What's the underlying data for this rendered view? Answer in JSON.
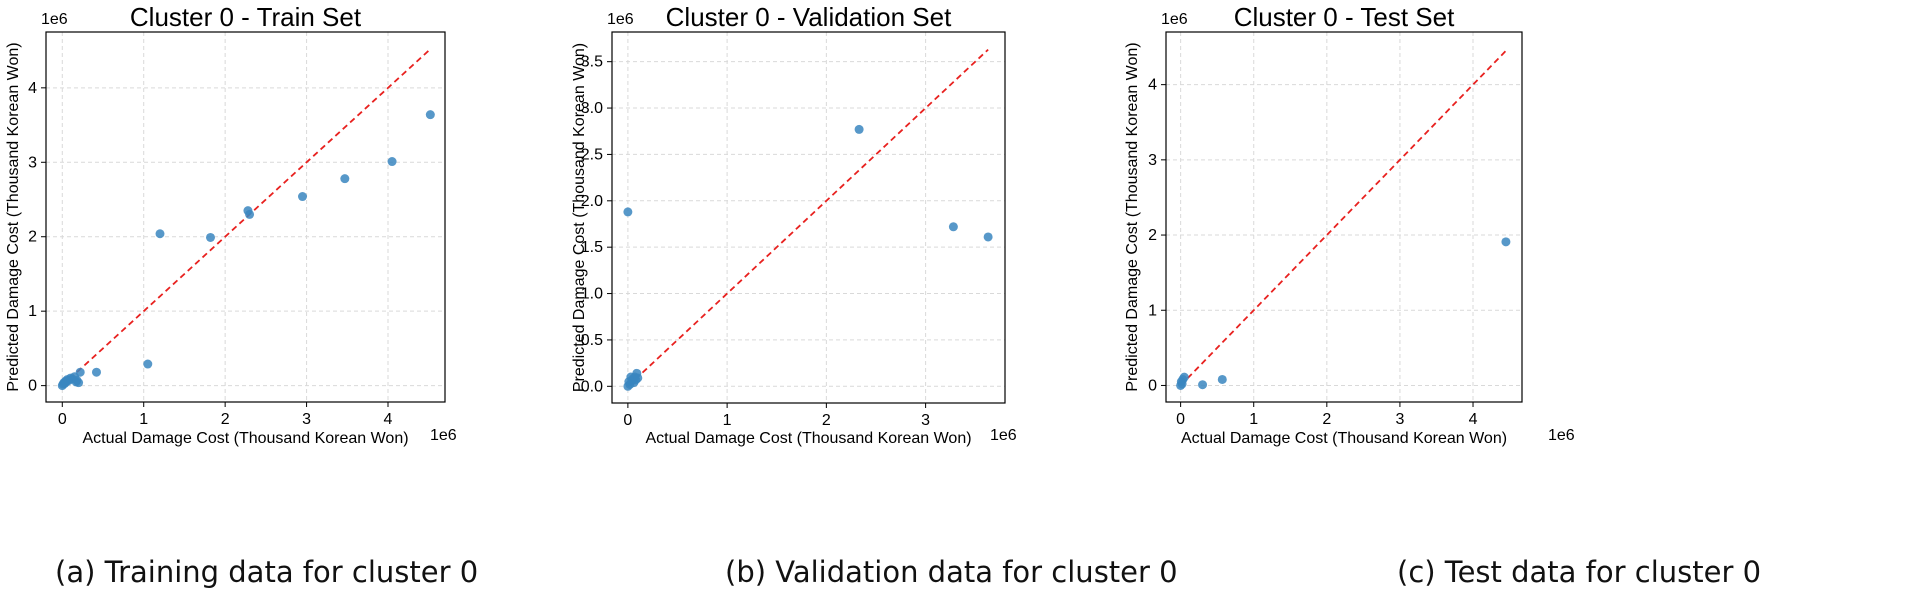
{
  "captions": [
    "(a) Training data for cluster 0",
    "(b) Validation data for cluster 0",
    "(c) Test data for cluster 0"
  ],
  "chart_data": [
    {
      "type": "scatter",
      "title": "Cluster 0 - Train Set",
      "xlabel": "Actual Damage Cost (Thousand Korean Won)",
      "ylabel": "Predicted Damage Cost (Thousand Korean Won)",
      "x_offset_label": "1e6",
      "y_offset_label": "1e6",
      "xlim": [
        -0.2,
        4.7
      ],
      "ylim": [
        -0.22,
        4.75
      ],
      "xticks": [
        0,
        1,
        2,
        3,
        4
      ],
      "yticks": [
        0,
        1,
        2,
        3,
        4
      ],
      "xtick_labels": [
        "0",
        "1",
        "2",
        "3",
        "4"
      ],
      "ytick_labels": [
        "0",
        "1",
        "2",
        "3",
        "4"
      ],
      "grid": true,
      "reference_line": {
        "from": [
          0,
          0
        ],
        "to": [
          4.5,
          4.5
        ],
        "color": "#e8211f",
        "style": "dashed"
      },
      "point_color": "#3a86c0",
      "x": [
        0.0,
        0.01,
        0.02,
        0.03,
        0.04,
        0.05,
        0.06,
        0.08,
        0.1,
        0.12,
        0.15,
        0.17,
        0.18,
        0.2,
        0.22,
        0.42,
        1.05,
        1.2,
        1.82,
        2.28,
        2.3,
        2.95,
        3.47,
        4.05,
        4.52
      ],
      "y": [
        0.0,
        0.02,
        0.04,
        0.03,
        0.06,
        0.05,
        0.08,
        0.07,
        0.1,
        0.09,
        0.12,
        0.05,
        0.07,
        0.04,
        0.18,
        0.18,
        0.29,
        2.04,
        1.99,
        2.35,
        2.3,
        2.54,
        2.78,
        3.01,
        3.64
      ]
    },
    {
      "type": "scatter",
      "title": "Cluster 0 - Validation Set",
      "xlabel": "Actual Damage Cost (Thousand Korean Won)",
      "ylabel": "Predicted Damage Cost (Thousand Korean Won)",
      "x_offset_label": "1e6",
      "y_offset_label": "1e6",
      "xlim": [
        -0.16,
        3.8
      ],
      "ylim": [
        -0.18,
        3.82
      ],
      "xticks": [
        0,
        1,
        2,
        3
      ],
      "yticks": [
        0,
        0.5,
        1.0,
        1.5,
        2.0,
        2.5,
        3.0,
        3.5
      ],
      "xtick_labels": [
        "0",
        "1",
        "2",
        "3"
      ],
      "ytick_labels": [
        "0.0",
        "0.5",
        "1.0",
        "1.5",
        "2.0",
        "2.5",
        "3.0",
        "3.5"
      ],
      "grid": true,
      "reference_line": {
        "from": [
          0,
          0
        ],
        "to": [
          3.63,
          3.63
        ],
        "color": "#e8211f",
        "style": "dashed"
      },
      "point_color": "#3a86c0",
      "x": [
        0.0,
        0.01,
        0.02,
        0.03,
        0.04,
        0.05,
        0.06,
        0.07,
        0.08,
        0.09,
        0.1,
        0.0,
        2.33,
        3.28,
        3.63
      ],
      "y": [
        0.0,
        0.05,
        0.02,
        0.1,
        0.06,
        0.08,
        0.04,
        0.1,
        0.07,
        0.14,
        0.09,
        1.88,
        2.77,
        1.72,
        1.61
      ]
    },
    {
      "type": "scatter",
      "title": "Cluster 0 - Test Set",
      "xlabel": "Actual Damage Cost (Thousand Korean Won)",
      "ylabel": "Predicted Damage Cost (Thousand Korean Won)",
      "x_offset_label": "1e6",
      "y_offset_label": "1e6",
      "xlim": [
        -0.2,
        4.67
      ],
      "ylim": [
        -0.22,
        4.7
      ],
      "xticks": [
        0,
        1,
        2,
        3,
        4
      ],
      "yticks": [
        0,
        1,
        2,
        3,
        4
      ],
      "xtick_labels": [
        "0",
        "1",
        "2",
        "3",
        "4"
      ],
      "ytick_labels": [
        "0",
        "1",
        "2",
        "3",
        "4"
      ],
      "grid": true,
      "reference_line": {
        "from": [
          0,
          0
        ],
        "to": [
          4.45,
          4.45
        ],
        "color": "#e8211f",
        "style": "dashed"
      },
      "point_color": "#3a86c0",
      "x": [
        0.0,
        0.01,
        0.02,
        0.03,
        0.05,
        0.3,
        0.57,
        4.45
      ],
      "y": [
        0.0,
        0.05,
        0.02,
        0.08,
        0.11,
        0.01,
        0.08,
        1.91
      ]
    }
  ]
}
